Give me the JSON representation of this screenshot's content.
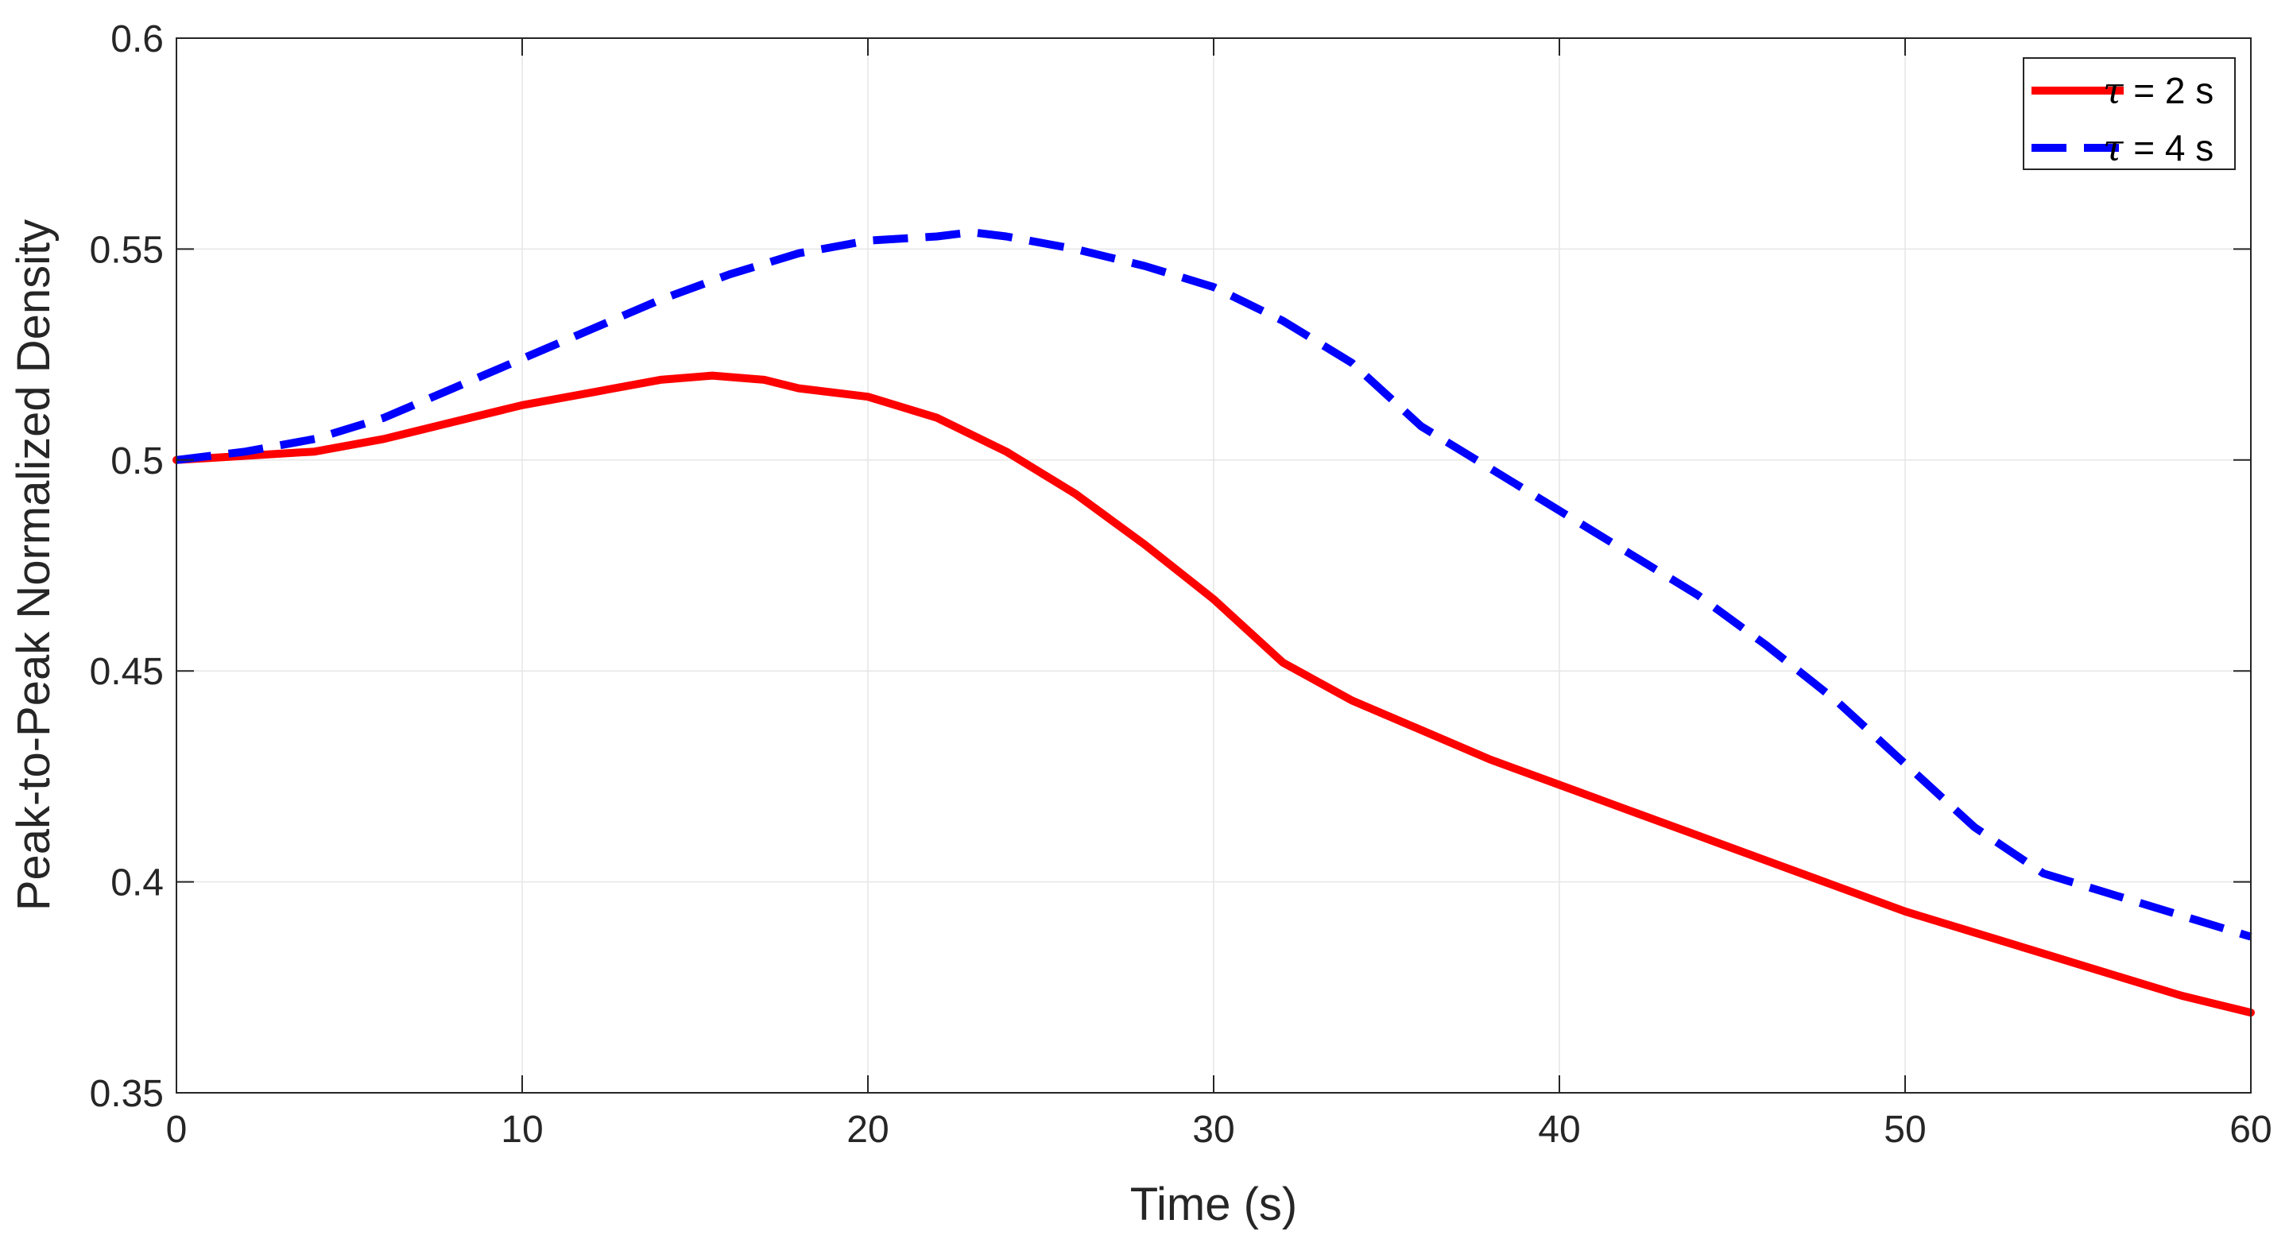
{
  "chart_data": {
    "type": "line",
    "title": "",
    "xlabel": "Time (s)",
    "ylabel": "Peak-to-Peak Normalized Density",
    "xlim": [
      0,
      60
    ],
    "ylim": [
      0.35,
      0.6
    ],
    "xticks": [
      0,
      10,
      20,
      30,
      40,
      50,
      60
    ],
    "xtick_labels": [
      "0",
      "10",
      "20",
      "30",
      "40",
      "50",
      "60"
    ],
    "yticks": [
      0.35,
      0.4,
      0.45,
      0.5,
      0.55,
      0.6
    ],
    "ytick_labels": [
      "0.35",
      "0.4",
      "0.45",
      "0.5",
      "0.55",
      "0.6"
    ],
    "grid": true,
    "legend_position": "top-right",
    "series": [
      {
        "name": "τ = 2 s",
        "legend_symbol": "τ",
        "legend_text": " = 2 s",
        "color": "#ff0000",
        "style": "solid",
        "x": [
          0,
          2,
          4,
          6,
          8,
          10,
          12,
          14,
          15.5,
          17,
          18,
          20,
          22,
          24,
          26,
          28,
          30,
          32,
          34,
          36,
          38,
          40,
          42,
          44,
          46,
          48,
          50,
          52,
          54,
          56,
          58,
          60
        ],
        "y": [
          0.5,
          0.501,
          0.502,
          0.505,
          0.509,
          0.513,
          0.516,
          0.519,
          0.52,
          0.519,
          0.517,
          0.515,
          0.51,
          0.502,
          0.492,
          0.48,
          0.467,
          0.452,
          0.443,
          0.436,
          0.429,
          0.423,
          0.417,
          0.411,
          0.405,
          0.399,
          0.393,
          0.388,
          0.383,
          0.378,
          0.373,
          0.369
        ]
      },
      {
        "name": "τ = 4 s",
        "legend_symbol": "τ",
        "legend_text": " = 4 s",
        "color": "#0000ff",
        "style": "dashed",
        "x": [
          0,
          2,
          4,
          6,
          8,
          10,
          12,
          14,
          16,
          18,
          20,
          22,
          23,
          24,
          26,
          28,
          30,
          32,
          34,
          36,
          38,
          40,
          42,
          44,
          46,
          48,
          50,
          52,
          54,
          56,
          58,
          60
        ],
        "y": [
          0.5,
          0.502,
          0.505,
          0.51,
          0.517,
          0.524,
          0.531,
          0.538,
          0.544,
          0.549,
          0.552,
          0.553,
          0.554,
          0.553,
          0.55,
          0.546,
          0.541,
          0.533,
          0.523,
          0.508,
          0.498,
          0.488,
          0.478,
          0.468,
          0.456,
          0.443,
          0.428,
          0.413,
          0.402,
          0.397,
          0.392,
          0.387
        ]
      }
    ]
  }
}
